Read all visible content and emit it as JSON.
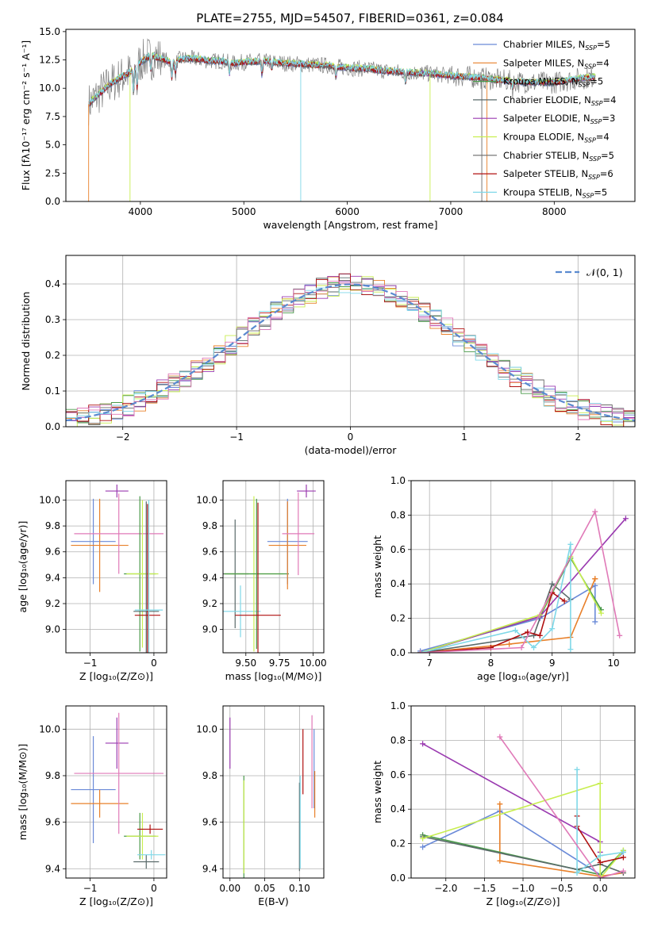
{
  "figure_title": "PLATE=2755, MJD=54507, FIBERID=0361, z=0.084",
  "colors": {
    "chab_miles": "#6a8ad8",
    "salp_miles": "#e8802a",
    "krou_miles": "#4a9a4a",
    "chab_elodie": "#5a6a6a",
    "salp_elodie": "#9a3ab0",
    "krou_elodie": "#c8ee50",
    "chab_stelib": "#6a6a6a",
    "salp_stelib": "#b01010",
    "krou_stelib": "#7fd8e8",
    "pink": "#e07ab8",
    "grid": "#b0b0b0",
    "data_line": "#808080"
  },
  "chart_data": [
    {
      "id": "spectrum",
      "type": "line",
      "xlabel": "wavelength [Angstrom, rest frame]",
      "ylabel": "Flux [fλ10⁻¹⁷ erg cm⁻² s⁻¹ A⁻¹]",
      "xlim": [
        3280,
        8780
      ],
      "ylim": [
        0,
        15.2
      ],
      "xticks": [
        4000,
        5000,
        6000,
        7000,
        8000
      ],
      "yticks": [
        0.0,
        2.5,
        5.0,
        7.5,
        10.0,
        12.5,
        15.0
      ],
      "grid": false,
      "legend_position": "right",
      "legend": [
        {
          "label": "Chabrier MILES, N",
          "sub": "SSP",
          "tail": "=5",
          "color": "#6a8ad8"
        },
        {
          "label": "Salpeter MILES, N",
          "sub": "SSP",
          "tail": "=4",
          "color": "#e8802a"
        },
        {
          "label": "Kroupa MILES, N",
          "sub": "SSP",
          "tail": "=5",
          "color": "#4a9a4a"
        },
        {
          "label": "Chabrier ELODIE, N",
          "sub": "SSP",
          "tail": "=4",
          "color": "#5a6a6a"
        },
        {
          "label": "Salpeter ELODIE, N",
          "sub": "SSP",
          "tail": "=3",
          "color": "#9a3ab0"
        },
        {
          "label": "Kroupa ELODIE, N",
          "sub": "SSP",
          "tail": "=4",
          "color": "#c8ee50"
        },
        {
          "label": "Chabrier STELIB, N",
          "sub": "SSP",
          "tail": "=5",
          "color": "#6a6a6a"
        },
        {
          "label": "Salpeter STELIB, N",
          "sub": "SSP",
          "tail": "=6",
          "color": "#b01010"
        },
        {
          "label": "Kroupa STELIB, N",
          "sub": "SSP",
          "tail": "=5",
          "color": "#7fd8e8"
        }
      ],
      "continuum": [
        [
          3500,
          8.6
        ],
        [
          3600,
          9.5
        ],
        [
          3700,
          10.3
        ],
        [
          3800,
          10.9
        ],
        [
          3900,
          11.4
        ],
        [
          4000,
          12.3
        ],
        [
          4100,
          12.9
        ],
        [
          4200,
          12.6
        ],
        [
          4300,
          12.3
        ],
        [
          4400,
          12.6
        ],
        [
          4500,
          12.6
        ],
        [
          4600,
          12.5
        ],
        [
          4700,
          12.4
        ],
        [
          4800,
          12.4
        ],
        [
          4900,
          12.2
        ],
        [
          5000,
          12.3
        ],
        [
          5200,
          12.4
        ],
        [
          5400,
          12.2
        ],
        [
          5600,
          12.1
        ],
        [
          5800,
          12.0
        ],
        [
          6000,
          11.8
        ],
        [
          6200,
          11.7
        ],
        [
          6400,
          11.5
        ],
        [
          6600,
          11.4
        ],
        [
          6800,
          11.3
        ],
        [
          7000,
          11.1
        ],
        [
          7200,
          11.0
        ],
        [
          7400,
          10.8
        ],
        [
          7600,
          10.6
        ],
        [
          7800,
          10.5
        ],
        [
          8000,
          10.5
        ],
        [
          8200,
          10.8
        ],
        [
          8400,
          11.0
        ]
      ]
    },
    {
      "id": "residuals",
      "type": "line",
      "xlabel": "(data-model)/error",
      "ylabel": "Normed distribution",
      "xlim": [
        -2.5,
        2.5
      ],
      "ylim": [
        0,
        0.48
      ],
      "xticks": [
        -2,
        -1,
        0,
        1,
        2
      ],
      "yticks": [
        0.0,
        0.1,
        0.2,
        0.3,
        0.4
      ],
      "grid": true,
      "legend_position": "top-right",
      "legend": [
        {
          "label": "𝒩(0, 1)",
          "style": "dashed",
          "color": "#5a8ad0"
        }
      ]
    },
    {
      "id": "age_vs_Z",
      "type": "scatter",
      "xlabel": "Z [log₁₀(Z/Z⊙)]",
      "ylabel": "age  [log₁₀(age/yr)]",
      "xlim": [
        -1.38,
        0.2
      ],
      "ylim": [
        8.82,
        10.15
      ],
      "xticks": [
        -1,
        0
      ],
      "yticks": [
        9.0,
        9.2,
        9.4,
        9.6,
        9.8,
        10.0
      ],
      "grid": true,
      "points": [
        {
          "x": -0.95,
          "y": 9.68,
          "xerr": 0.35,
          "yerr": 0.33,
          "color": "#6a8ad8"
        },
        {
          "x": -0.85,
          "y": 9.65,
          "xerr": 0.45,
          "yerr": 0.36,
          "color": "#e8802a"
        },
        {
          "x": -0.58,
          "y": 10.07,
          "xerr": 0.18,
          "yerr": 0.05,
          "color": "#9a3ab0"
        },
        {
          "x": -0.55,
          "y": 9.74,
          "xerr": 0.7,
          "yerr": 0.31,
          "color": "#e07ab8"
        },
        {
          "x": -0.22,
          "y": 9.43,
          "xerr": 0.25,
          "yerr": 0.6,
          "color": "#4a9a4a"
        },
        {
          "x": -0.18,
          "y": 9.43,
          "xerr": 0.25,
          "yerr": 0.57,
          "color": "#c8ee50"
        },
        {
          "x": -0.12,
          "y": 9.14,
          "xerr": 0.2,
          "yerr": 0.85,
          "color": "#5a6a6a"
        },
        {
          "x": -0.1,
          "y": 9.11,
          "xerr": 0.2,
          "yerr": 0.86,
          "color": "#b01010"
        },
        {
          "x": -0.08,
          "y": 9.15,
          "xerr": 0.22,
          "yerr": 0.85,
          "color": "#7fd8e8"
        }
      ]
    },
    {
      "id": "age_vs_mass",
      "type": "scatter",
      "xlabel": "mass [log₁₀(M/M⊙)]",
      "ylabel": "",
      "xlim": [
        9.33,
        10.08
      ],
      "ylim": [
        8.82,
        10.15
      ],
      "xticks": [
        9.5,
        9.75,
        10.0
      ],
      "yticks": [
        9.0,
        9.2,
        9.4,
        9.6,
        9.8,
        10.0
      ],
      "grid": true,
      "points": [
        {
          "x": 9.42,
          "y": 9.43,
          "xerr": 0.1,
          "yerr": 0.42,
          "color": "#5a6a6a"
        },
        {
          "x": 9.46,
          "y": 9.14,
          "xerr": 0.15,
          "yerr": 0.2,
          "color": "#7fd8e8"
        },
        {
          "x": 9.56,
          "y": 9.43,
          "xerr": 0.22,
          "yerr": 0.6,
          "color": "#c8ee50"
        },
        {
          "x": 9.58,
          "y": 9.43,
          "xerr": 0.24,
          "yerr": 0.58,
          "color": "#4a9a4a"
        },
        {
          "x": 9.59,
          "y": 9.11,
          "xerr": 0.17,
          "yerr": 0.87,
          "color": "#b01010"
        },
        {
          "x": 9.81,
          "y": 9.68,
          "xerr": 0.15,
          "yerr": 0.33,
          "color": "#6a8ad8"
        },
        {
          "x": 9.81,
          "y": 9.65,
          "xerr": 0.14,
          "yerr": 0.34,
          "color": "#e8802a"
        },
        {
          "x": 9.89,
          "y": 9.74,
          "xerr": 0.12,
          "yerr": 0.32,
          "color": "#e07ab8"
        },
        {
          "x": 9.95,
          "y": 10.07,
          "xerr": 0.07,
          "yerr": 0.05,
          "color": "#9a3ab0"
        }
      ]
    },
    {
      "id": "mass_weight_vs_age",
      "type": "line",
      "xlabel": "age  [log₁₀(age/yr)]",
      "ylabel": "mass weight",
      "xlim": [
        6.7,
        10.35
      ],
      "ylim": [
        0,
        1.0
      ],
      "xticks": [
        7,
        8,
        9,
        10
      ],
      "yticks": [
        0.0,
        0.2,
        0.4,
        0.6,
        0.8,
        1.0
      ],
      "grid": true,
      "series": [
        {
          "color": "#6a8ad8",
          "points": [
            [
              6.85,
              0.01
            ],
            [
              8.8,
              0.2
            ],
            [
              9.7,
              0.39
            ],
            [
              9.7,
              0.18
            ]
          ]
        },
        {
          "color": "#e8802a",
          "points": [
            [
              6.85,
              0.0
            ],
            [
              8.3,
              0.05
            ],
            [
              9.3,
              0.09
            ],
            [
              9.7,
              0.43
            ],
            [
              9.7,
              0.43
            ]
          ]
        },
        {
          "color": "#4a9a4a",
          "points": [
            [
              6.85,
              0.0
            ],
            [
              8.8,
              0.21
            ],
            [
              9.3,
              0.55
            ],
            [
              9.8,
              0.25
            ]
          ]
        },
        {
          "color": "#5a6a6a",
          "points": [
            [
              6.85,
              0.0
            ],
            [
              8.7,
              0.1
            ],
            [
              9.0,
              0.4
            ],
            [
              9.3,
              0.31
            ]
          ]
        },
        {
          "color": "#9a3ab0",
          "points": [
            [
              6.85,
              0.0
            ],
            [
              8.8,
              0.21
            ],
            [
              10.2,
              0.78
            ]
          ]
        },
        {
          "color": "#c8ee50",
          "points": [
            [
              6.85,
              0.0
            ],
            [
              8.8,
              0.22
            ],
            [
              9.3,
              0.56
            ],
            [
              9.8,
              0.23
            ]
          ]
        },
        {
          "color": "#b01010",
          "points": [
            [
              6.85,
              0.0
            ],
            [
              8.0,
              0.03
            ],
            [
              8.6,
              0.12
            ],
            [
              8.8,
              0.1
            ],
            [
              9.0,
              0.35
            ],
            [
              9.2,
              0.3
            ]
          ]
        },
        {
          "color": "#7fd8e8",
          "points": [
            [
              6.85,
              0.0
            ],
            [
              8.4,
              0.13
            ],
            [
              8.7,
              0.03
            ],
            [
              9.0,
              0.14
            ],
            [
              9.3,
              0.63
            ],
            [
              9.3,
              0.02
            ]
          ]
        },
        {
          "color": "#e07ab8",
          "points": [
            [
              6.85,
              0.0
            ],
            [
              8.5,
              0.03
            ],
            [
              9.7,
              0.82
            ],
            [
              10.1,
              0.1
            ]
          ]
        }
      ]
    },
    {
      "id": "mass_vs_Z",
      "type": "scatter",
      "xlabel": "Z [log₁₀(Z/Z⊙)]",
      "ylabel": "mass [log₁₀(M/M⊙)]",
      "xlim": [
        -1.38,
        0.2
      ],
      "ylim": [
        9.36,
        10.1
      ],
      "xticks": [
        -1,
        0
      ],
      "yticks": [
        9.4,
        9.6,
        9.8,
        10.0
      ],
      "grid": true,
      "points": [
        {
          "x": -0.95,
          "y": 9.74,
          "xerr": 0.35,
          "yerr": 0.23,
          "color": "#6a8ad8"
        },
        {
          "x": -0.85,
          "y": 9.68,
          "xerr": 0.45,
          "yerr": 0.06,
          "color": "#e8802a"
        },
        {
          "x": -0.58,
          "y": 9.94,
          "xerr": 0.18,
          "yerr": 0.11,
          "color": "#9a3ab0"
        },
        {
          "x": -0.55,
          "y": 9.81,
          "xerr": 0.7,
          "yerr": 0.26,
          "color": "#e07ab8"
        },
        {
          "x": -0.22,
          "y": 9.54,
          "xerr": 0.25,
          "yerr": 0.1,
          "color": "#4a9a4a"
        },
        {
          "x": -0.18,
          "y": 9.54,
          "xerr": 0.25,
          "yerr": 0.1,
          "color": "#c8ee50"
        },
        {
          "x": -0.12,
          "y": 9.43,
          "xerr": 0.2,
          "yerr": 0.03,
          "color": "#5a6a6a"
        },
        {
          "x": -0.06,
          "y": 9.57,
          "xerr": 0.2,
          "yerr": 0.02,
          "color": "#b01010"
        },
        {
          "x": -0.04,
          "y": 9.46,
          "xerr": 0.22,
          "yerr": 0.02,
          "color": "#7fd8e8"
        }
      ]
    },
    {
      "id": "mass_vs_ebv",
      "type": "scatter",
      "xlabel": "E(B-V)",
      "ylabel": "",
      "xlim": [
        -0.01,
        0.135
      ],
      "ylim": [
        9.36,
        10.1
      ],
      "xticks": [
        0.0,
        0.05,
        0.1
      ],
      "tick_labels": [
        "0.00",
        "0.05",
        "0.10"
      ],
      "yticks": [
        9.4,
        9.6,
        9.8,
        10.0
      ],
      "grid": true,
      "points": [
        {
          "x": 0.0,
          "y": 9.94,
          "xerr": 0.0,
          "yerr": 0.11,
          "color": "#9a3ab0"
        },
        {
          "x": 0.02,
          "y": 9.58,
          "xerr": 0.0,
          "yerr": 0.22,
          "color": "#4a9a4a"
        },
        {
          "x": 0.02,
          "y": 9.58,
          "xerr": 0.0,
          "yerr": 0.2,
          "color": "#c8ee50"
        },
        {
          "x": 0.1,
          "y": 9.58,
          "xerr": 0.0,
          "yerr": 0.19,
          "color": "#5a6a6a"
        },
        {
          "x": 0.101,
          "y": 9.6,
          "xerr": 0.0,
          "yerr": 0.2,
          "color": "#7fd8e8"
        },
        {
          "x": 0.105,
          "y": 9.86,
          "xerr": 0.0,
          "yerr": 0.14,
          "color": "#b01010"
        },
        {
          "x": 0.118,
          "y": 9.86,
          "xerr": 0.0,
          "yerr": 0.2,
          "color": "#e07ab8"
        },
        {
          "x": 0.121,
          "y": 9.83,
          "xerr": 0.0,
          "yerr": 0.17,
          "color": "#6a8ad8"
        },
        {
          "x": 0.122,
          "y": 9.72,
          "xerr": 0.0,
          "yerr": 0.1,
          "color": "#e8802a"
        }
      ]
    },
    {
      "id": "mass_weight_vs_Z",
      "type": "line",
      "xlabel": "Z [log₁₀(Z/Z⊙)]",
      "ylabel": "mass weight",
      "xlim": [
        -2.45,
        0.45
      ],
      "ylim": [
        0,
        1.0
      ],
      "xticks": [
        -2.0,
        -1.5,
        -1.0,
        -0.5,
        0.0
      ],
      "yticks": [
        0.0,
        0.2,
        0.4,
        0.6,
        0.8,
        1.0
      ],
      "grid": true,
      "series": [
        {
          "color": "#6a8ad8",
          "points": [
            [
              -2.3,
              0.18
            ],
            [
              -1.3,
              0.39
            ],
            [
              0.0,
              0.02
            ],
            [
              0.3,
              0.15
            ]
          ]
        },
        {
          "color": "#e8802a",
          "points": [
            [
              -1.3,
              0.43
            ],
            [
              -1.3,
              0.1
            ],
            [
              0.0,
              0.01
            ],
            [
              0.3,
              0.03
            ]
          ]
        },
        {
          "color": "#4a9a4a",
          "points": [
            [
              -2.3,
              0.25
            ],
            [
              0.0,
              0.02
            ],
            [
              0.3,
              0.16
            ]
          ]
        },
        {
          "color": "#5a6a6a",
          "points": [
            [
              -2.3,
              0.24
            ],
            [
              -0.3,
              0.05
            ],
            [
              0.0,
              0.08
            ],
            [
              0.3,
              0.03
            ]
          ]
        },
        {
          "color": "#9a3ab0",
          "points": [
            [
              -2.3,
              0.78
            ],
            [
              0.0,
              0.21
            ],
            [
              0.0,
              0.15
            ]
          ]
        },
        {
          "color": "#c8ee50",
          "points": [
            [
              -2.3,
              0.23
            ],
            [
              0.0,
              0.55
            ],
            [
              0.0,
              0.0
            ],
            [
              0.3,
              0.16
            ]
          ]
        },
        {
          "color": "#b01010",
          "points": [
            [
              -0.3,
              0.36
            ],
            [
              -0.3,
              0.3
            ],
            [
              0.0,
              0.09
            ],
            [
              0.3,
              0.12
            ]
          ]
        },
        {
          "color": "#7fd8e8",
          "points": [
            [
              -0.3,
              0.63
            ],
            [
              -0.3,
              0.03
            ],
            [
              0.0,
              0.13
            ],
            [
              0.3,
              0.15
            ]
          ]
        },
        {
          "color": "#e07ab8",
          "points": [
            [
              -1.3,
              0.82
            ],
            [
              0.0,
              0.0
            ],
            [
              0.3,
              0.04
            ]
          ]
        }
      ]
    }
  ]
}
